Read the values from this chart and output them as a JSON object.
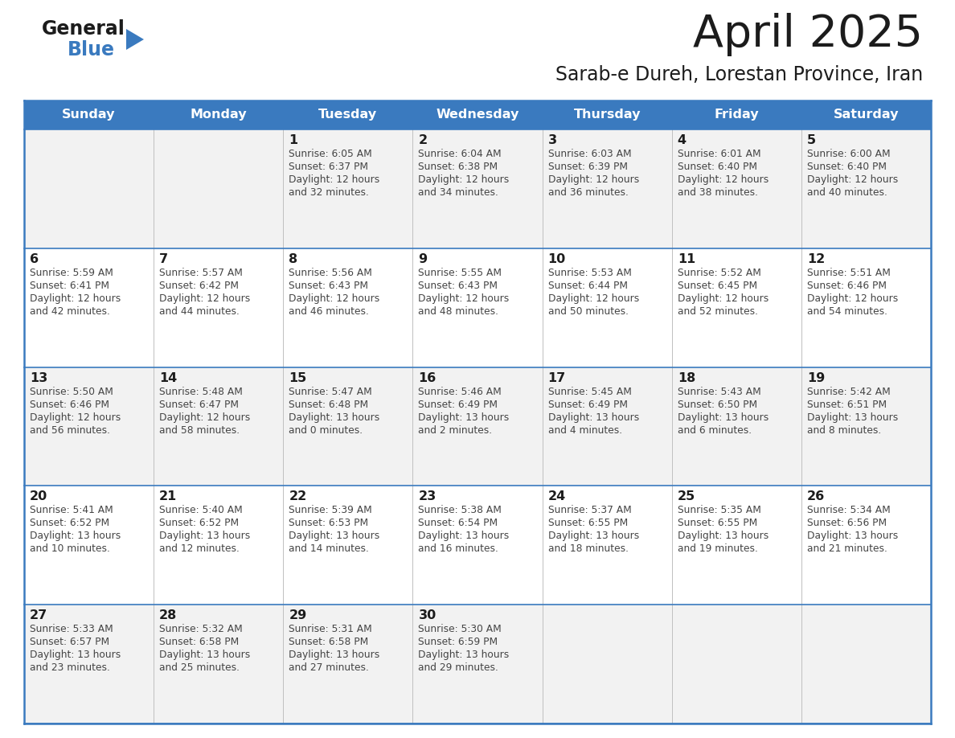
{
  "title": "April 2025",
  "subtitle": "Sarab-e Dureh, Lorestan Province, Iran",
  "header_color": "#3a7abf",
  "header_text_color": "#ffffff",
  "text_color": "#333333",
  "days_of_week": [
    "Sunday",
    "Monday",
    "Tuesday",
    "Wednesday",
    "Thursday",
    "Friday",
    "Saturday"
  ],
  "weeks": [
    [
      {
        "day": "",
        "sunrise": "",
        "sunset": "",
        "daylight": ""
      },
      {
        "day": "",
        "sunrise": "",
        "sunset": "",
        "daylight": ""
      },
      {
        "day": "1",
        "sunrise": "Sunrise: 6:05 AM",
        "sunset": "Sunset: 6:37 PM",
        "daylight": "Daylight: 12 hours\nand 32 minutes."
      },
      {
        "day": "2",
        "sunrise": "Sunrise: 6:04 AM",
        "sunset": "Sunset: 6:38 PM",
        "daylight": "Daylight: 12 hours\nand 34 minutes."
      },
      {
        "day": "3",
        "sunrise": "Sunrise: 6:03 AM",
        "sunset": "Sunset: 6:39 PM",
        "daylight": "Daylight: 12 hours\nand 36 minutes."
      },
      {
        "day": "4",
        "sunrise": "Sunrise: 6:01 AM",
        "sunset": "Sunset: 6:40 PM",
        "daylight": "Daylight: 12 hours\nand 38 minutes."
      },
      {
        "day": "5",
        "sunrise": "Sunrise: 6:00 AM",
        "sunset": "Sunset: 6:40 PM",
        "daylight": "Daylight: 12 hours\nand 40 minutes."
      }
    ],
    [
      {
        "day": "6",
        "sunrise": "Sunrise: 5:59 AM",
        "sunset": "Sunset: 6:41 PM",
        "daylight": "Daylight: 12 hours\nand 42 minutes."
      },
      {
        "day": "7",
        "sunrise": "Sunrise: 5:57 AM",
        "sunset": "Sunset: 6:42 PM",
        "daylight": "Daylight: 12 hours\nand 44 minutes."
      },
      {
        "day": "8",
        "sunrise": "Sunrise: 5:56 AM",
        "sunset": "Sunset: 6:43 PM",
        "daylight": "Daylight: 12 hours\nand 46 minutes."
      },
      {
        "day": "9",
        "sunrise": "Sunrise: 5:55 AM",
        "sunset": "Sunset: 6:43 PM",
        "daylight": "Daylight: 12 hours\nand 48 minutes."
      },
      {
        "day": "10",
        "sunrise": "Sunrise: 5:53 AM",
        "sunset": "Sunset: 6:44 PM",
        "daylight": "Daylight: 12 hours\nand 50 minutes."
      },
      {
        "day": "11",
        "sunrise": "Sunrise: 5:52 AM",
        "sunset": "Sunset: 6:45 PM",
        "daylight": "Daylight: 12 hours\nand 52 minutes."
      },
      {
        "day": "12",
        "sunrise": "Sunrise: 5:51 AM",
        "sunset": "Sunset: 6:46 PM",
        "daylight": "Daylight: 12 hours\nand 54 minutes."
      }
    ],
    [
      {
        "day": "13",
        "sunrise": "Sunrise: 5:50 AM",
        "sunset": "Sunset: 6:46 PM",
        "daylight": "Daylight: 12 hours\nand 56 minutes."
      },
      {
        "day": "14",
        "sunrise": "Sunrise: 5:48 AM",
        "sunset": "Sunset: 6:47 PM",
        "daylight": "Daylight: 12 hours\nand 58 minutes."
      },
      {
        "day": "15",
        "sunrise": "Sunrise: 5:47 AM",
        "sunset": "Sunset: 6:48 PM",
        "daylight": "Daylight: 13 hours\nand 0 minutes."
      },
      {
        "day": "16",
        "sunrise": "Sunrise: 5:46 AM",
        "sunset": "Sunset: 6:49 PM",
        "daylight": "Daylight: 13 hours\nand 2 minutes."
      },
      {
        "day": "17",
        "sunrise": "Sunrise: 5:45 AM",
        "sunset": "Sunset: 6:49 PM",
        "daylight": "Daylight: 13 hours\nand 4 minutes."
      },
      {
        "day": "18",
        "sunrise": "Sunrise: 5:43 AM",
        "sunset": "Sunset: 6:50 PM",
        "daylight": "Daylight: 13 hours\nand 6 minutes."
      },
      {
        "day": "19",
        "sunrise": "Sunrise: 5:42 AM",
        "sunset": "Sunset: 6:51 PM",
        "daylight": "Daylight: 13 hours\nand 8 minutes."
      }
    ],
    [
      {
        "day": "20",
        "sunrise": "Sunrise: 5:41 AM",
        "sunset": "Sunset: 6:52 PM",
        "daylight": "Daylight: 13 hours\nand 10 minutes."
      },
      {
        "day": "21",
        "sunrise": "Sunrise: 5:40 AM",
        "sunset": "Sunset: 6:52 PM",
        "daylight": "Daylight: 13 hours\nand 12 minutes."
      },
      {
        "day": "22",
        "sunrise": "Sunrise: 5:39 AM",
        "sunset": "Sunset: 6:53 PM",
        "daylight": "Daylight: 13 hours\nand 14 minutes."
      },
      {
        "day": "23",
        "sunrise": "Sunrise: 5:38 AM",
        "sunset": "Sunset: 6:54 PM",
        "daylight": "Daylight: 13 hours\nand 16 minutes."
      },
      {
        "day": "24",
        "sunrise": "Sunrise: 5:37 AM",
        "sunset": "Sunset: 6:55 PM",
        "daylight": "Daylight: 13 hours\nand 18 minutes."
      },
      {
        "day": "25",
        "sunrise": "Sunrise: 5:35 AM",
        "sunset": "Sunset: 6:55 PM",
        "daylight": "Daylight: 13 hours\nand 19 minutes."
      },
      {
        "day": "26",
        "sunrise": "Sunrise: 5:34 AM",
        "sunset": "Sunset: 6:56 PM",
        "daylight": "Daylight: 13 hours\nand 21 minutes."
      }
    ],
    [
      {
        "day": "27",
        "sunrise": "Sunrise: 5:33 AM",
        "sunset": "Sunset: 6:57 PM",
        "daylight": "Daylight: 13 hours\nand 23 minutes."
      },
      {
        "day": "28",
        "sunrise": "Sunrise: 5:32 AM",
        "sunset": "Sunset: 6:58 PM",
        "daylight": "Daylight: 13 hours\nand 25 minutes."
      },
      {
        "day": "29",
        "sunrise": "Sunrise: 5:31 AM",
        "sunset": "Sunset: 6:58 PM",
        "daylight": "Daylight: 13 hours\nand 27 minutes."
      },
      {
        "day": "30",
        "sunrise": "Sunrise: 5:30 AM",
        "sunset": "Sunset: 6:59 PM",
        "daylight": "Daylight: 13 hours\nand 29 minutes."
      },
      {
        "day": "",
        "sunrise": "",
        "sunset": "",
        "daylight": ""
      },
      {
        "day": "",
        "sunrise": "",
        "sunset": "",
        "daylight": ""
      },
      {
        "day": "",
        "sunrise": "",
        "sunset": "",
        "daylight": ""
      }
    ]
  ]
}
